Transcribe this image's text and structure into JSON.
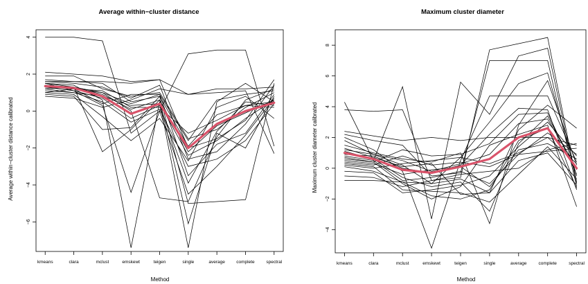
{
  "chart_data": [
    {
      "type": "line",
      "title": "Average within−cluster distance",
      "xlabel": "Method",
      "ylabel": "Average within−cluster distance calibrated",
      "categories": [
        "kmeans",
        "clara",
        "mclust",
        "emskewt",
        "teigen",
        "single",
        "average",
        "complete",
        "spectral"
      ],
      "ylim": [
        -7.6,
        4.4
      ],
      "yticks": [
        4,
        2,
        0,
        -2,
        -4,
        -6
      ],
      "ytick_labels": [
        "4",
        "2",
        "0",
        "−2",
        "−4",
        "−6"
      ],
      "grid": false,
      "line_color": "#000000",
      "mean_color": "#d9536a",
      "mean_series": [
        1.35,
        1.25,
        0.8,
        -0.15,
        0.4,
        -2.0,
        -0.7,
        0.0,
        0.45
      ],
      "series": [
        {
          "values": [
            4.0,
            4.0,
            3.8,
            -1.2,
            0.0,
            3.1,
            3.3,
            3.3,
            -1.9
          ]
        },
        {
          "values": [
            2.1,
            2.0,
            1.9,
            1.6,
            1.7,
            0.9,
            1.2,
            1.2,
            1.3
          ]
        },
        {
          "values": [
            1.9,
            1.9,
            1.2,
            0.8,
            1.0,
            -1.5,
            -1.0,
            0.2,
            1.0
          ]
        },
        {
          "values": [
            1.7,
            1.6,
            1.5,
            0.5,
            0.8,
            -5.0,
            -4.9,
            -4.8,
            1.5
          ]
        },
        {
          "values": [
            1.6,
            1.6,
            1.6,
            1.5,
            1.7,
            -2.0,
            -1.5,
            -0.5,
            1.7
          ]
        },
        {
          "values": [
            1.5,
            1.4,
            0.6,
            -7.4,
            0.5,
            -7.4,
            0.5,
            1.5,
            0.5
          ]
        },
        {
          "values": [
            1.5,
            1.3,
            -2.2,
            -1.0,
            0.6,
            -6.1,
            -1.2,
            -2.0,
            0.8
          ]
        },
        {
          "values": [
            1.4,
            1.3,
            1.0,
            0.4,
            0.9,
            -3.5,
            -1.8,
            -1.2,
            0.9
          ]
        },
        {
          "values": [
            1.3,
            1.2,
            1.0,
            0.0,
            -4.7,
            -4.9,
            -1.4,
            0.6,
            1.2
          ]
        },
        {
          "values": [
            1.3,
            1.1,
            0.3,
            -4.4,
            0.0,
            -4.5,
            -3.0,
            -1.3,
            0.7
          ]
        },
        {
          "values": [
            1.2,
            1.0,
            0.5,
            -0.6,
            0.1,
            -3.0,
            -2.6,
            -1.6,
            0.4
          ]
        },
        {
          "values": [
            1.1,
            1.0,
            0.8,
            0.3,
            0.4,
            -2.4,
            -1.6,
            -0.4,
            0.6
          ]
        },
        {
          "values": [
            1.0,
            0.9,
            -0.3,
            -1.6,
            -0.4,
            -2.7,
            0.2,
            0.8,
            -0.4
          ]
        },
        {
          "values": [
            0.9,
            0.8,
            -1.0,
            -0.9,
            0.8,
            -1.9,
            -0.2,
            0.3,
            0.2
          ]
        },
        {
          "values": [
            0.8,
            0.7,
            0.2,
            0.6,
            1.2,
            0.9,
            1.0,
            1.1,
            -2.3
          ]
        },
        {
          "values": [
            1.4,
            1.2,
            1.1,
            0.2,
            0.2,
            -1.2,
            -0.5,
            0.3,
            0.5
          ]
        },
        {
          "values": [
            1.2,
            1.3,
            0.9,
            0.1,
            0.6,
            -2.2,
            -0.8,
            -0.1,
            0.6
          ]
        },
        {
          "values": [
            1.5,
            1.1,
            0.7,
            -0.4,
            0.3,
            -3.9,
            -1.1,
            0.5,
            0.3
          ]
        },
        {
          "values": [
            1.0,
            1.2,
            0.4,
            0.9,
            0.9,
            -1.6,
            0.6,
            0.9,
            1.1
          ]
        },
        {
          "values": [
            1.6,
            1.5,
            1.3,
            0.7,
            1.4,
            -2.6,
            -2.2,
            -0.7,
            1.4
          ]
        }
      ]
    },
    {
      "type": "line",
      "title": "Maximum cluster diameter",
      "xlabel": "Method",
      "ylabel": "Maximum cluster diameter calibrated",
      "categories": [
        "kmeans",
        "clara",
        "mclust",
        "emskewt",
        "teigen",
        "single",
        "average",
        "complete",
        "spectral"
      ],
      "ylim": [
        -5.5,
        9.0
      ],
      "yticks": [
        8,
        6,
        4,
        2,
        0,
        -2,
        -4
      ],
      "ytick_labels": [
        "8",
        "6",
        "4",
        "2",
        "0",
        "−2",
        "−4"
      ],
      "grid": false,
      "line_color": "#000000",
      "mean_color": "#d9536a",
      "mean_series": [
        1.0,
        0.6,
        -0.1,
        -0.3,
        0.1,
        0.6,
        2.0,
        2.6,
        0.0
      ],
      "series": [
        {
          "values": [
            3.8,
            3.7,
            3.8,
            -0.8,
            -0.6,
            7.7,
            8.1,
            8.5,
            -0.9
          ]
        },
        {
          "values": [
            2.4,
            2.1,
            1.8,
            2.0,
            1.8,
            2.0,
            2.0,
            2.0,
            1.5
          ]
        },
        {
          "values": [
            4.3,
            0.5,
            5.3,
            -3.3,
            5.6,
            3.5,
            7.3,
            7.8,
            -1.0
          ]
        },
        {
          "values": [
            2.2,
            1.8,
            1.5,
            -0.5,
            -0.3,
            7.0,
            7.0,
            7.0,
            -1.2
          ]
        },
        {
          "values": [
            2.0,
            1.2,
            -0.2,
            -5.2,
            0.5,
            4.7,
            4.7,
            4.7,
            0.4
          ]
        },
        {
          "values": [
            1.8,
            0.9,
            0.2,
            -1.0,
            0.7,
            3.0,
            5.5,
            6.2,
            -0.5
          ]
        },
        {
          "values": [
            1.5,
            1.0,
            0.6,
            0.4,
            1.0,
            -3.6,
            2.8,
            5.7,
            0.2
          ]
        },
        {
          "values": [
            1.3,
            0.7,
            0.1,
            0.3,
            -1.7,
            -1.6,
            2.5,
            4.1,
            2.6
          ]
        },
        {
          "values": [
            1.1,
            0.6,
            -0.6,
            -1.2,
            -0.9,
            -2.8,
            1.6,
            3.4,
            -0.1
          ]
        },
        {
          "values": [
            0.9,
            0.8,
            0.0,
            -0.3,
            0.2,
            2.2,
            3.9,
            3.8,
            -1.4
          ]
        },
        {
          "values": [
            0.8,
            0.5,
            -0.8,
            -0.6,
            -0.2,
            -1.0,
            0.9,
            2.3,
            0.9
          ]
        },
        {
          "values": [
            0.7,
            0.4,
            -1.0,
            -2.0,
            -1.2,
            1.5,
            2.2,
            2.8,
            -2.5
          ]
        },
        {
          "values": [
            0.5,
            0.3,
            -0.4,
            -0.1,
            0.1,
            -1.2,
            1.2,
            1.6,
            0.6
          ]
        },
        {
          "values": [
            0.4,
            0.2,
            0.8,
            0.2,
            0.4,
            0.1,
            0.9,
            1.1,
            1.3
          ]
        },
        {
          "values": [
            0.3,
            0.1,
            -1.4,
            -1.5,
            -1.6,
            -2.2,
            -0.4,
            1.4,
            -0.7
          ]
        },
        {
          "values": [
            0.2,
            0.0,
            0.3,
            0.5,
            0.7,
            0.3,
            1.0,
            2.0,
            0.3
          ]
        },
        {
          "values": [
            0.1,
            -0.2,
            -0.9,
            -1.0,
            -0.7,
            -1.6,
            0.5,
            1.0,
            -1.1
          ]
        },
        {
          "values": [
            -0.2,
            -0.3,
            -1.6,
            -1.4,
            -1.1,
            -0.5,
            1.4,
            3.0,
            0.8
          ]
        },
        {
          "values": [
            -0.5,
            -0.6,
            -1.2,
            -0.8,
            -0.4,
            -0.2,
            0.0,
            1.2,
            1.6
          ]
        },
        {
          "values": [
            -0.8,
            -0.8,
            -0.9,
            -1.8,
            -2.0,
            -1.4,
            1.8,
            2.6,
            -1.3
          ]
        },
        {
          "values": [
            1.2,
            0.9,
            0.5,
            -0.2,
            0.3,
            0.9,
            2.9,
            3.2,
            0.0
          ]
        },
        {
          "values": [
            0.6,
            0.4,
            1.2,
            0.8,
            0.9,
            1.6,
            3.5,
            3.6,
            -0.4
          ]
        }
      ]
    }
  ]
}
